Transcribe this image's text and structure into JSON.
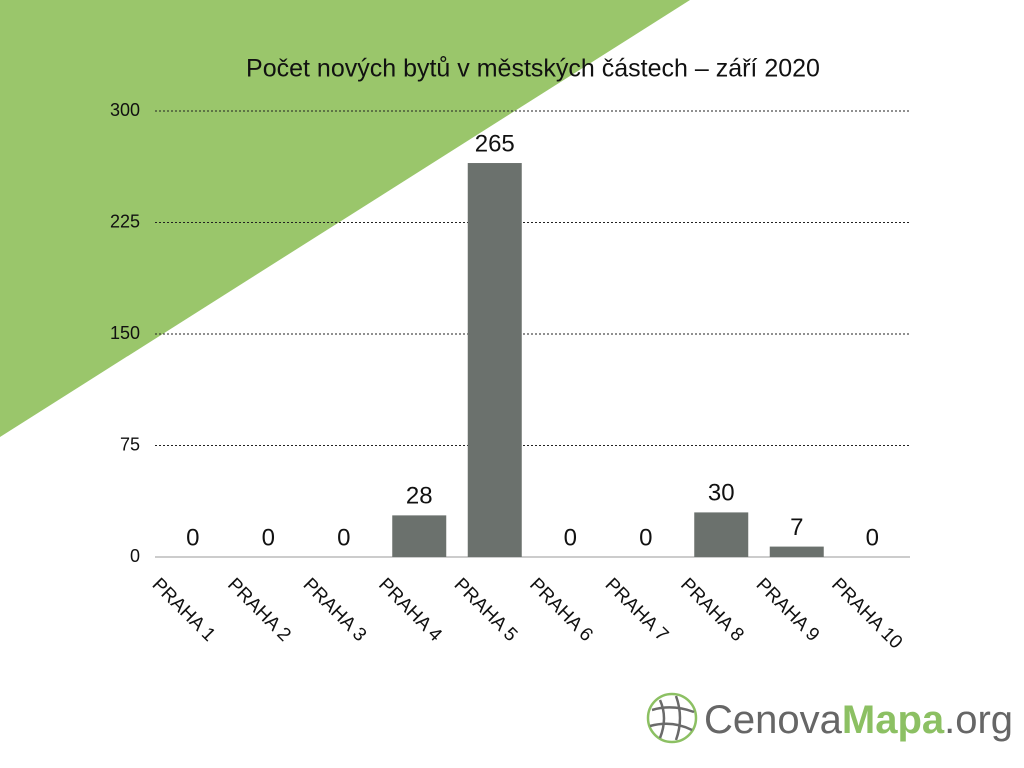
{
  "chart_data": {
    "type": "bar",
    "title": "Počet nových bytů v městských částech – září 2020",
    "categories": [
      "PRAHA 1",
      "PRAHA 2",
      "PRAHA 3",
      "PRAHA 4",
      "PRAHA 5",
      "PRAHA 6",
      "PRAHA 7",
      "PRAHA 8",
      "PRAHA 9",
      "PRAHA 10"
    ],
    "values": [
      0,
      0,
      0,
      28,
      265,
      0,
      0,
      30,
      7,
      0
    ],
    "color": "#6b716d",
    "ylim": [
      0,
      300
    ],
    "yticks": [
      0,
      75,
      150,
      225,
      300
    ],
    "grid": true
  },
  "logo": {
    "parts": [
      "Cenova",
      "Mapa",
      ".org"
    ]
  }
}
